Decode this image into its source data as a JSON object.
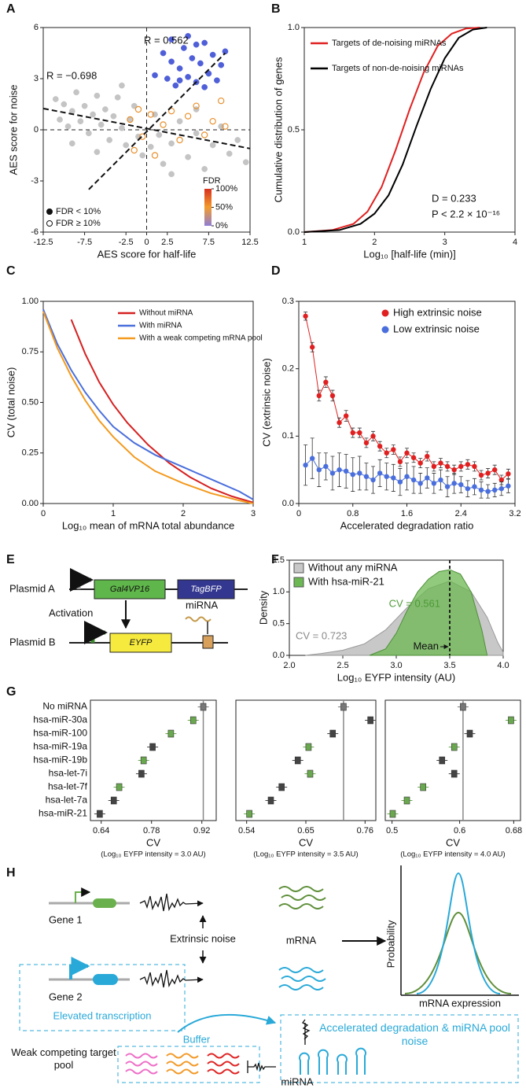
{
  "chart_data": [
    {
      "type": "scatter",
      "label": "A",
      "xlabel": "AES score for half-life",
      "ylabel": "AES score for noise",
      "xlim": [
        -12.5,
        12.5
      ],
      "ylim": [
        -6,
        6
      ],
      "xticks": [
        -12.5,
        -7.5,
        -2.5,
        0,
        2.5,
        7.5,
        12.5
      ],
      "yticks": [
        -6,
        -3,
        0,
        3,
        6
      ],
      "annotations": [
        "R = 0.562",
        "R = −0.698"
      ],
      "series": [
        {
          "name": "FDR < 10%",
          "color": "#4f5fd8",
          "filled": true,
          "x": [
            1,
            2,
            2.5,
            3,
            3.5,
            4,
            4.5,
            5,
            5.5,
            6,
            6.5,
            7,
            7.5,
            8,
            8.5,
            9,
            9.5,
            3,
            5,
            7,
            4,
            6
          ],
          "values": [
            3.2,
            4.5,
            3.0,
            4.0,
            2.6,
            3.6,
            4.8,
            3.1,
            4.2,
            2.8,
            3.9,
            5.1,
            3.3,
            4.4,
            2.9,
            3.8,
            4.6,
            5.3,
            5.5,
            2.5,
            2.9,
            5.0
          ]
        },
        {
          "name": "FDR ≥ 10%",
          "color": "#e8902e",
          "filled": false,
          "x": [
            -2,
            -1.5,
            -1,
            -0.5,
            0.5,
            1,
            2,
            3,
            4,
            5,
            6,
            7,
            8,
            9,
            9.5
          ],
          "values": [
            0.6,
            -1.2,
            1.2,
            -0.4,
            0.9,
            -1.5,
            0.3,
            1.1,
            -0.6,
            0.8,
            1.4,
            -0.3,
            0.5,
            1.7,
            0.2
          ]
        },
        {
          "color": "#c4c4c4",
          "filled": true,
          "x": [
            -11,
            -10.5,
            -10,
            -9.5,
            -9,
            -8.5,
            -8,
            -7.5,
            -7,
            -6.5,
            -6,
            -5.5,
            -5,
            -4.5,
            -4,
            -3.5,
            -3,
            -2.5,
            -2,
            -1.5,
            -1,
            -0.5,
            0.5,
            1,
            1.5,
            2,
            3,
            4,
            5,
            6,
            7,
            8,
            9,
            10,
            11,
            12,
            -9,
            -6,
            -3,
            3,
            6
          ],
          "values": [
            1.8,
            0.6,
            1.5,
            0.2,
            1.1,
            2.2,
            0.5,
            1.4,
            -0.2,
            0.9,
            2.0,
            0.3,
            1.2,
            -0.6,
            0.8,
            1.9,
            0.1,
            -0.9,
            0.6,
            1.4,
            -0.4,
            -1.5,
            -1.0,
            0.9,
            -0.3,
            -2.0,
            -0.8,
            0.5,
            -1.6,
            -0.2,
            -2.3,
            -0.9,
            0.2,
            -1.4,
            -0.6,
            -1.9,
            -0.8,
            -1.3,
            2.6,
            -2.6,
            1.2
          ]
        }
      ],
      "fit_lines": [
        {
          "x": [
            -12.5,
            12.5
          ],
          "values": [
            1.25,
            -1.1
          ]
        },
        {
          "x": [
            -7,
            9.5
          ],
          "values": [
            -3.5,
            4.5
          ]
        }
      ],
      "colorbar": {
        "title": "FDR",
        "lim": [
          0,
          100
        ],
        "ticks": [
          {
            "value": 100,
            "label": "100%"
          },
          {
            "value": 50,
            "label": "50%"
          },
          {
            "value": 0,
            "label": "0%"
          }
        ]
      }
    },
    {
      "type": "line",
      "label": "B",
      "xlabel": "Log₁₀ [half-life (min)]",
      "ylabel": "Cumulative distribution of genes",
      "xlim": [
        1,
        4
      ],
      "ylim": [
        0,
        1
      ],
      "xticks": [
        1,
        2,
        3,
        4
      ],
      "yticks": [
        {
          "value": 0,
          "label": "0.0"
        },
        0.5,
        {
          "value": 1,
          "label": "1.0"
        }
      ],
      "annotations": [
        "D = 0.233",
        "P < 2.2 × 10⁻¹⁶"
      ],
      "series": [
        {
          "name": "Targets of de-noising miRNAs",
          "color": "#e02020",
          "x": [
            1,
            1.4,
            1.7,
            1.9,
            2.1,
            2.3,
            2.5,
            2.7,
            2.9,
            3.1,
            3.3,
            3.5
          ],
          "values": [
            0,
            0.01,
            0.04,
            0.1,
            0.22,
            0.4,
            0.6,
            0.78,
            0.91,
            0.97,
            0.995,
            1
          ]
        },
        {
          "name": "Targets of non-de-noising miRNAs",
          "color": "#000000",
          "x": [
            1,
            1.5,
            1.8,
            2.0,
            2.2,
            2.4,
            2.6,
            2.8,
            3.0,
            3.2,
            3.4,
            3.6
          ],
          "values": [
            0,
            0.01,
            0.04,
            0.09,
            0.18,
            0.33,
            0.52,
            0.7,
            0.85,
            0.95,
            0.99,
            1
          ]
        }
      ]
    },
    {
      "type": "line",
      "label": "C",
      "xlabel": "Log₁₀ mean of mRNA total abundance",
      "ylabel": "CV (total noise)",
      "xlim": [
        0,
        3
      ],
      "ylim": [
        0,
        1
      ],
      "xticks": [
        0,
        1,
        2,
        3
      ],
      "yticks": [
        {
          "value": 0,
          "label": "0.00"
        },
        0.25,
        {
          "value": 0.5,
          "label": "0.50"
        },
        0.75,
        {
          "value": 1,
          "label": "1.00"
        }
      ],
      "series": [
        {
          "name": "Without miRNA",
          "color": "#d62020",
          "x": [
            0.4,
            0.6,
            0.8,
            1,
            1.2,
            1.5,
            1.8,
            2.1,
            2.4,
            2.7,
            3
          ],
          "values": [
            0.91,
            0.74,
            0.6,
            0.49,
            0.4,
            0.29,
            0.2,
            0.13,
            0.075,
            0.035,
            0.005
          ]
        },
        {
          "name": "With miRNA",
          "color": "#4a6fdc",
          "x": [
            0,
            0.2,
            0.4,
            0.6,
            0.8,
            1,
            1.3,
            1.6,
            2,
            2.4,
            2.8,
            3
          ],
          "values": [
            0.96,
            0.79,
            0.66,
            0.55,
            0.46,
            0.38,
            0.3,
            0.24,
            0.18,
            0.12,
            0.06,
            0.02
          ]
        },
        {
          "name": "With a weak competing mRNA pool",
          "color": "#f39a1e",
          "x": [
            0,
            0.2,
            0.4,
            0.6,
            0.8,
            1,
            1.3,
            1.6,
            2,
            2.4,
            2.8,
            3
          ],
          "values": [
            0.95,
            0.77,
            0.63,
            0.51,
            0.41,
            0.33,
            0.23,
            0.16,
            0.1,
            0.05,
            0.015,
            0.0
          ]
        }
      ]
    },
    {
      "type": "errorline",
      "label": "D",
      "xlabel": "Accelerated degradation ratio",
      "ylabel": "CV (extrinsic noise)",
      "xlim": [
        0,
        3.2
      ],
      "ylim": [
        0,
        0.3
      ],
      "xticks": [
        0,
        0.8,
        1.6,
        2.4,
        3.2
      ],
      "yticks": [
        {
          "value": 0,
          "label": "0.0"
        },
        0.1,
        0.2,
        0.3
      ],
      "series": [
        {
          "name": "High extrinsic noise",
          "color": "#e02020",
          "x": [
            0.1,
            0.2,
            0.3,
            0.4,
            0.5,
            0.6,
            0.7,
            0.8,
            0.9,
            1.0,
            1.1,
            1.2,
            1.3,
            1.4,
            1.5,
            1.6,
            1.7,
            1.8,
            1.9,
            2.0,
            2.1,
            2.2,
            2.3,
            2.4,
            2.5,
            2.6,
            2.7,
            2.8,
            2.9,
            3.0,
            3.1
          ],
          "values": [
            0.278,
            0.232,
            0.16,
            0.18,
            0.16,
            0.12,
            0.13,
            0.105,
            0.105,
            0.09,
            0.1,
            0.085,
            0.075,
            0.08,
            0.062,
            0.075,
            0.068,
            0.06,
            0.07,
            0.055,
            0.06,
            0.055,
            0.05,
            0.055,
            0.058,
            0.055,
            0.042,
            0.045,
            0.05,
            0.035,
            0.044
          ],
          "errors": [
            0.006,
            0.007,
            0.008,
            0.008,
            0.008,
            0.007,
            0.008,
            0.007,
            0.007,
            0.007,
            0.007,
            0.007,
            0.007,
            0.007,
            0.007,
            0.007,
            0.007,
            0.007,
            0.007,
            0.007,
            0.007,
            0.007,
            0.007,
            0.007,
            0.007,
            0.007,
            0.007,
            0.007,
            0.007,
            0.007,
            0.007
          ]
        },
        {
          "name": "Low extrinsic noise",
          "color": "#4a6fdc",
          "x": [
            0.1,
            0.2,
            0.3,
            0.4,
            0.5,
            0.6,
            0.7,
            0.8,
            0.9,
            1.0,
            1.1,
            1.2,
            1.3,
            1.4,
            1.5,
            1.6,
            1.7,
            1.8,
            1.9,
            2.0,
            2.1,
            2.2,
            2.3,
            2.4,
            2.5,
            2.6,
            2.7,
            2.8,
            2.9,
            3.0,
            3.1
          ],
          "values": [
            0.057,
            0.067,
            0.05,
            0.055,
            0.045,
            0.05,
            0.048,
            0.043,
            0.045,
            0.04,
            0.035,
            0.045,
            0.04,
            0.038,
            0.032,
            0.04,
            0.035,
            0.03,
            0.038,
            0.03,
            0.035,
            0.025,
            0.03,
            0.028,
            0.022,
            0.025,
            0.02,
            0.018,
            0.02,
            0.022,
            0.026
          ],
          "errors": [
            0.03,
            0.03,
            0.025,
            0.02,
            0.025,
            0.025,
            0.025,
            0.025,
            0.025,
            0.02,
            0.02,
            0.02,
            0.02,
            0.02,
            0.02,
            0.02,
            0.02,
            0.015,
            0.015,
            0.015,
            0.015,
            0.015,
            0.015,
            0.012,
            0.012,
            0.012,
            0.012,
            0.01,
            0.01,
            0.01,
            0.01
          ]
        }
      ]
    },
    {
      "type": "area",
      "label": "F",
      "xlabel": "Log₁₀ EYFP intensity (AU)",
      "ylabel": "Density",
      "xlim": [
        2,
        4
      ],
      "ylim": [
        0,
        1.5
      ],
      "xticks": [
        {
          "value": 2,
          "label": "2.0"
        },
        2.5,
        {
          "value": 3,
          "label": "3.0"
        },
        3.5,
        {
          "value": 4,
          "label": "4.0"
        }
      ],
      "yticks": [
        {
          "value": 0,
          "label": "0.0"
        },
        0.5,
        {
          "value": 1,
          "label": "1.0"
        },
        1.5
      ],
      "mean": 3.5,
      "annotations": [
        "CV = 0.561",
        "CV = 0.723",
        "Mean"
      ],
      "series": [
        {
          "name": "Without any miRNA",
          "color": "#c8c8c8",
          "x": [
            2.15,
            2.3,
            2.5,
            2.7,
            2.9,
            3.1,
            3.3,
            3.5,
            3.7,
            3.85,
            3.95,
            4.0
          ],
          "values": [
            0,
            0.03,
            0.08,
            0.18,
            0.4,
            0.75,
            1.05,
            1.17,
            1.0,
            0.6,
            0.2,
            0.05
          ]
        },
        {
          "name": "With hsa-miR-21",
          "color": "#6cb852",
          "x": [
            2.75,
            2.9,
            3.0,
            3.1,
            3.2,
            3.3,
            3.4,
            3.5,
            3.6,
            3.7,
            3.8,
            3.85
          ],
          "values": [
            0,
            0.1,
            0.35,
            0.7,
            1.0,
            1.2,
            1.32,
            1.35,
            1.28,
            1.0,
            0.4,
            0
          ]
        }
      ]
    },
    {
      "type": "dot",
      "label": "G",
      "xlabel": "CV",
      "note": "(Log₁₀ EYFP intensity = 3.0 AU)",
      "categories": [
        "No miRNA",
        "hsa-miR-30a",
        "hsa-miR-100",
        "hsa-miR-19a",
        "hsa-miR-19b",
        "hsa-let-7i",
        "hsa-let-7f",
        "hsa-let-7a",
        "hsa-miR-21"
      ],
      "xlim": [
        0.61,
        0.96
      ],
      "xticks": [
        0.64,
        0.78,
        0.92
      ],
      "values": [
        0.924,
        0.896,
        0.834,
        0.783,
        0.758,
        0.752,
        0.69,
        0.675,
        0.636
      ],
      "colors": [
        "#777777",
        "#6aa84f",
        "#6aa84f",
        "#444444",
        "#6aa84f",
        "#444444",
        "#6aa84f",
        "#444444",
        "#444444"
      ]
    },
    {
      "type": "dot",
      "xlabel": "CV",
      "note": "(Log₁₀ EYFP intensity = 3.5 AU)",
      "xlim": [
        0.52,
        0.78
      ],
      "xticks": [
        0.54,
        0.65,
        0.76
      ],
      "values": [
        0.72,
        0.77,
        0.7,
        0.655,
        0.635,
        0.658,
        0.605,
        0.585,
        0.545
      ],
      "colors": [
        "#777777",
        "#444444",
        "#444444",
        "#6aa84f",
        "#444444",
        "#6aa84f",
        "#444444",
        "#444444",
        "#6aa84f"
      ]
    },
    {
      "type": "dot",
      "xlabel": "CV",
      "note": "(Log₁₀ EYFP intensity = 4.0 AU)",
      "xlim": [
        0.49,
        0.69
      ],
      "xticks": [
        0.5,
        0.6,
        0.68
      ],
      "values": [
        0.605,
        0.676,
        0.615,
        0.592,
        0.574,
        0.592,
        0.546,
        0.522,
        0.501
      ],
      "colors": [
        "#777777",
        "#6aa84f",
        "#444444",
        "#6aa84f",
        "#444444",
        "#444444",
        "#6aa84f",
        "#6aa84f",
        "#6aa84f"
      ]
    }
  ],
  "panel_e": {
    "label": "E",
    "plasmid_a": "Plasmid A",
    "gal4": "Gal4VP16",
    "tagbfp": "TagBFP",
    "activation": "Activation",
    "mirna": "miRNA",
    "plasmid_b": "Plasmid B",
    "eyfp": "EYFP"
  },
  "panel_h": {
    "label": "H",
    "gene1": "Gene 1",
    "extrinsic": "Extrinsic noise",
    "mrna": "mRNA",
    "gene2": "Gene 2",
    "elevated": "Elevated transcription",
    "buffer": "Buffer",
    "accelerated": "Accelerated degradation & miRNA pool noise",
    "weak": "Weak competing target pool",
    "mirna": "miRNA",
    "probability": "Probability",
    "expression": "mRNA expression"
  }
}
